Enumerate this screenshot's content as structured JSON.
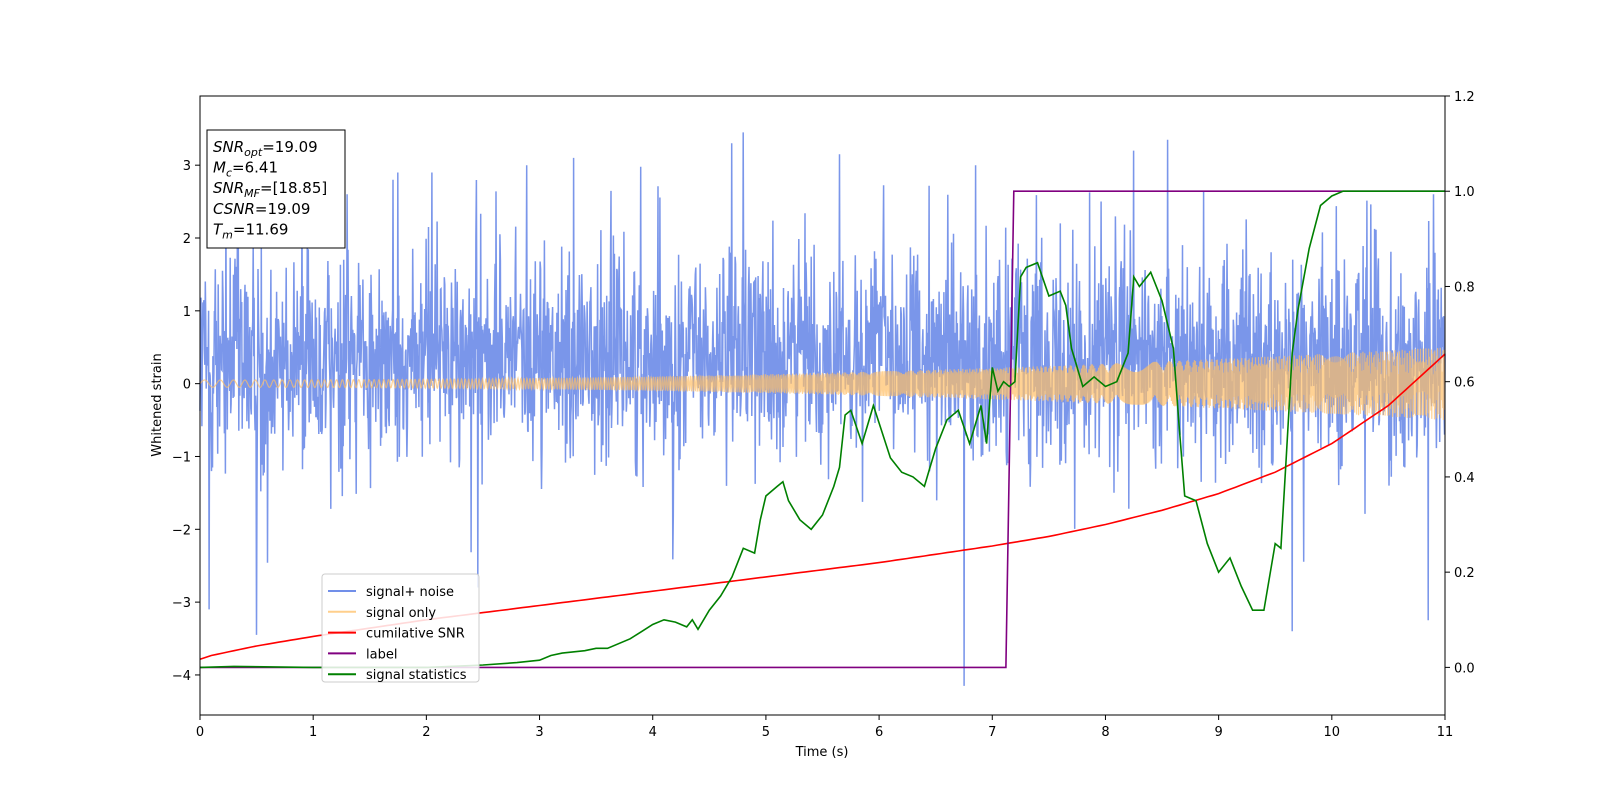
{
  "chart_data": {
    "type": "line",
    "xlabel": "Time (s)",
    "ylabel": "Whitened strain",
    "xlim": [
      0,
      11
    ],
    "ylim": [
      -4.55,
      3.95
    ],
    "y2lim": [
      -0.1,
      1.2
    ],
    "x_ticks": [
      0,
      1,
      2,
      3,
      4,
      5,
      6,
      7,
      8,
      9,
      10,
      11
    ],
    "y_ticks": [
      -4,
      -3,
      -2,
      -1,
      0,
      1,
      2,
      3
    ],
    "y2_ticks": [
      0.0,
      0.2,
      0.4,
      0.6,
      0.8,
      1.0,
      1.2
    ],
    "grid": false,
    "legend_position": "lower-left",
    "info_box": {
      "position": "top-left",
      "lines": [
        {
          "base": "SNR",
          "sub": "opt",
          "value": "=19.09"
        },
        {
          "base": "M",
          "sub": "c",
          "value": "=6.41"
        },
        {
          "base": "SNR",
          "sub": "MF",
          "value": "=[18.85]"
        },
        {
          "base": "CSNR",
          "sub": "",
          "value": "=19.09"
        },
        {
          "base": "T",
          "sub": "m",
          "value": "=11.69"
        }
      ]
    },
    "series": [
      {
        "name": "signal+ noise",
        "color": "#4169e1",
        "axis": "left",
        "kind": "noise",
        "typical_range": [
          -1.6,
          2.4
        ],
        "peaks": [
          [
            0.08,
            -3.1
          ],
          [
            0.5,
            -3.45
          ],
          [
            1.3,
            2.6
          ],
          [
            1.75,
            2.9
          ],
          [
            2.05,
            2.9
          ],
          [
            3.3,
            3.1
          ],
          [
            4.8,
            3.45
          ],
          [
            4.7,
            3.3
          ],
          [
            5.65,
            3.15
          ],
          [
            6.75,
            -4.15
          ],
          [
            7.6,
            2.2
          ],
          [
            8.25,
            3.2
          ],
          [
            8.55,
            3.35
          ],
          [
            9.65,
            -3.4
          ],
          [
            10.85,
            -3.25
          ],
          [
            10.9,
            2.6
          ]
        ]
      },
      {
        "name": "signal only",
        "color": "#ffbf66",
        "axis": "left",
        "kind": "chirp",
        "amplitude_start": 0.05,
        "amplitude_end": 0.5
      },
      {
        "name": "cumilative SNR",
        "color": "#ff0000",
        "axis": "right",
        "x": [
          0,
          0.1,
          0.5,
          1,
          2,
          3,
          4,
          5,
          6,
          7,
          7.5,
          8,
          8.5,
          9,
          9.5,
          10,
          10.5,
          11
        ],
        "y": [
          0.017,
          0.025,
          0.045,
          0.065,
          0.1,
          0.13,
          0.16,
          0.19,
          0.22,
          0.255,
          0.275,
          0.3,
          0.33,
          0.365,
          0.41,
          0.47,
          0.55,
          0.658
        ]
      },
      {
        "name": "label",
        "color": "#800080",
        "axis": "right",
        "x": [
          0,
          7.12,
          7.19,
          11
        ],
        "y": [
          0,
          0,
          1,
          1
        ]
      },
      {
        "name": "signal statistics",
        "color": "#008000",
        "axis": "right",
        "x": [
          0,
          0.3,
          1,
          2,
          2.5,
          2.8,
          3,
          3.1,
          3.2,
          3.4,
          3.5,
          3.6,
          3.8,
          3.9,
          4,
          4.1,
          4.2,
          4.3,
          4.35,
          4.4,
          4.5,
          4.6,
          4.7,
          4.8,
          4.9,
          4.95,
          5,
          5.1,
          5.15,
          5.2,
          5.3,
          5.4,
          5.5,
          5.6,
          5.65,
          5.7,
          5.75,
          5.85,
          5.95,
          6.1,
          6.2,
          6.3,
          6.4,
          6.45,
          6.5,
          6.6,
          6.7,
          6.8,
          6.9,
          6.95,
          7.0,
          7.05,
          7.1,
          7.15,
          7.2,
          7.25,
          7.3,
          7.4,
          7.5,
          7.6,
          7.65,
          7.7,
          7.8,
          7.9,
          8.0,
          8.1,
          8.2,
          8.25,
          8.3,
          8.4,
          8.5,
          8.6,
          8.65,
          8.7,
          8.8,
          8.9,
          9.0,
          9.1,
          9.2,
          9.3,
          9.4,
          9.5,
          9.55,
          9.6,
          9.65,
          9.7,
          9.8,
          9.9,
          10.0,
          10.1,
          10.3,
          10.5,
          10.7,
          10.9,
          11
        ],
        "y": [
          0,
          0.002,
          0,
          0,
          0.005,
          0.01,
          0.015,
          0.025,
          0.03,
          0.035,
          0.04,
          0.04,
          0.06,
          0.075,
          0.09,
          0.1,
          0.095,
          0.085,
          0.1,
          0.08,
          0.12,
          0.15,
          0.19,
          0.25,
          0.24,
          0.31,
          0.36,
          0.38,
          0.39,
          0.35,
          0.31,
          0.29,
          0.32,
          0.38,
          0.42,
          0.53,
          0.54,
          0.47,
          0.55,
          0.44,
          0.41,
          0.4,
          0.38,
          0.42,
          0.46,
          0.52,
          0.54,
          0.47,
          0.55,
          0.47,
          0.63,
          0.58,
          0.6,
          0.59,
          0.6,
          0.82,
          0.84,
          0.85,
          0.78,
          0.79,
          0.76,
          0.67,
          0.59,
          0.61,
          0.59,
          0.6,
          0.66,
          0.82,
          0.8,
          0.83,
          0.77,
          0.67,
          0.51,
          0.36,
          0.35,
          0.26,
          0.2,
          0.23,
          0.17,
          0.12,
          0.12,
          0.26,
          0.25,
          0.45,
          0.66,
          0.75,
          0.88,
          0.97,
          0.99,
          1.0,
          1.0,
          1.0,
          1.0,
          1.0,
          1.0
        ]
      }
    ]
  }
}
